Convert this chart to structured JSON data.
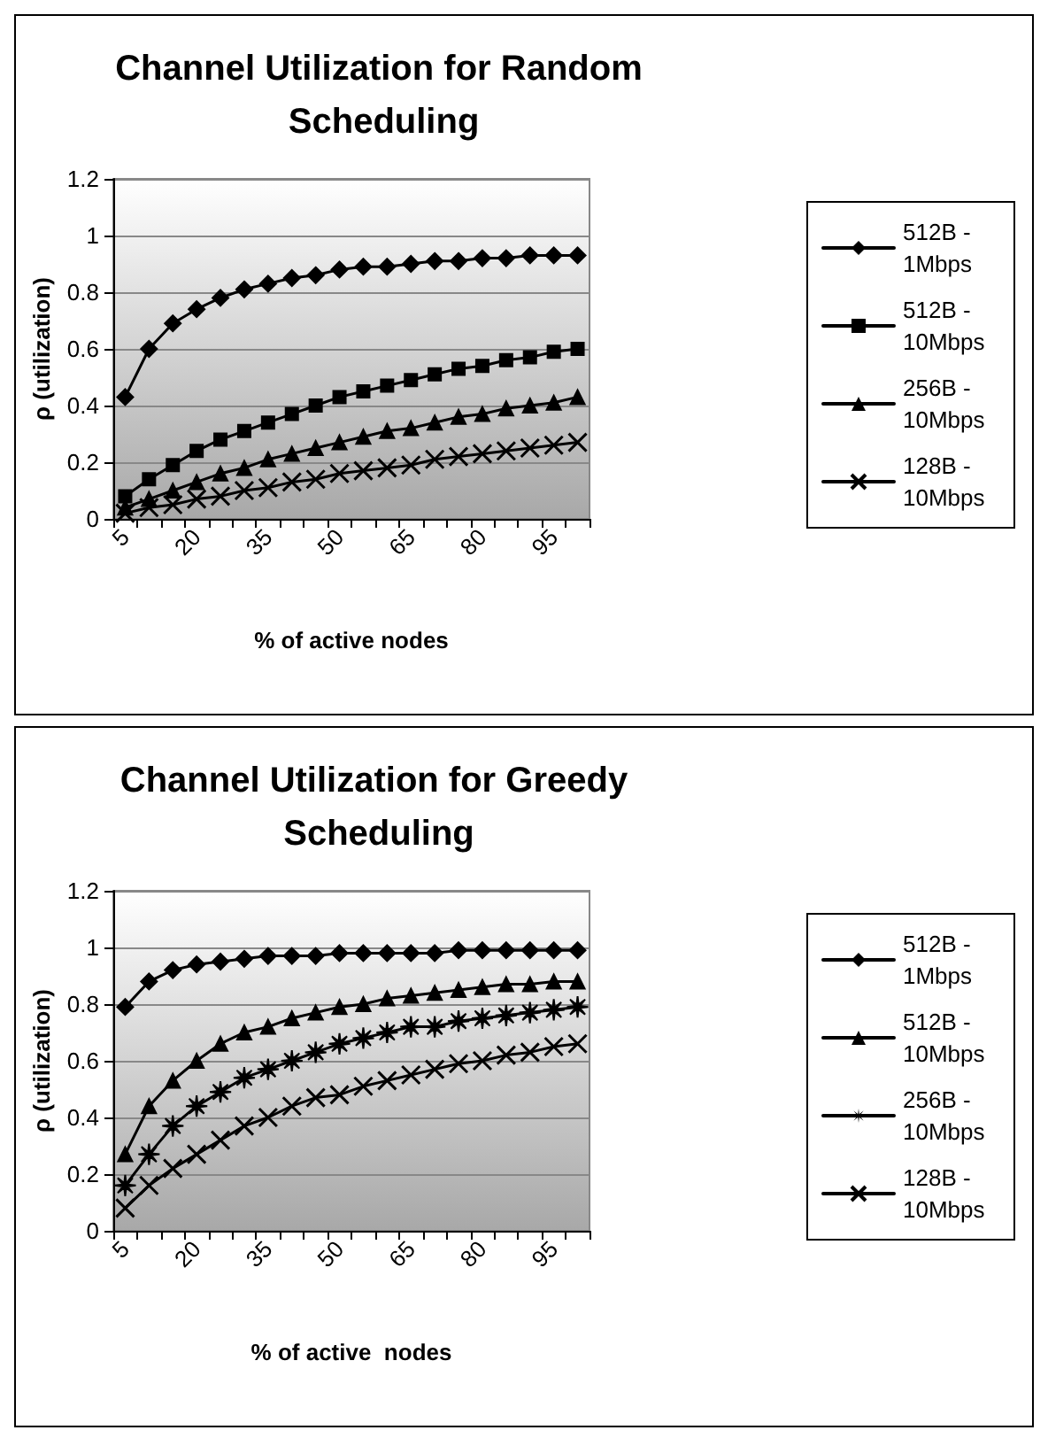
{
  "chart_data": [
    {
      "type": "line",
      "title": "Channel Utilization for Random Scheduling",
      "xlabel": "% of active nodes",
      "ylabel": "ρ (utilization)",
      "categories": [
        "5",
        null,
        null,
        "20",
        null,
        null,
        "35",
        null,
        null,
        "50",
        null,
        null,
        "65",
        null,
        null,
        "80",
        null,
        null,
        "95",
        null
      ],
      "series": [
        {
          "name": "512B - 1Mbps",
          "color": "#000000",
          "marker": "diamond",
          "values": [
            0.43,
            0.6,
            0.69,
            0.74,
            0.78,
            0.81,
            0.83,
            0.85,
            0.86,
            0.88,
            0.89,
            0.89,
            0.9,
            0.91,
            0.91,
            0.92,
            0.92,
            0.93,
            0.93,
            0.93
          ]
        },
        {
          "name": "512B - 10Mbps",
          "color": "#000000",
          "marker": "square",
          "values": [
            0.08,
            0.14,
            0.19,
            0.24,
            0.28,
            0.31,
            0.34,
            0.37,
            0.4,
            0.43,
            0.45,
            0.47,
            0.49,
            0.51,
            0.53,
            0.54,
            0.56,
            0.57,
            0.59,
            0.6
          ]
        },
        {
          "name": "256B - 10Mbps",
          "color": "#000000",
          "marker": "triangle",
          "values": [
            0.04,
            0.07,
            0.1,
            0.13,
            0.16,
            0.18,
            0.21,
            0.23,
            0.25,
            0.27,
            0.29,
            0.31,
            0.32,
            0.34,
            0.36,
            0.37,
            0.39,
            0.4,
            0.41,
            0.43
          ]
        },
        {
          "name": "128B - 10Mbps",
          "color": "#000000",
          "marker": "cross",
          "values": [
            0.02,
            0.04,
            0.05,
            0.07,
            0.08,
            0.1,
            0.11,
            0.13,
            0.14,
            0.16,
            0.17,
            0.18,
            0.19,
            0.21,
            0.22,
            0.23,
            0.24,
            0.25,
            0.26,
            0.27
          ]
        }
      ],
      "ylim": [
        0,
        1.2
      ],
      "yticks": [
        0,
        0.2,
        0.4,
        0.6,
        0.8,
        1,
        1.2
      ],
      "grid": "y",
      "legend": "right",
      "line_style": "solid"
    },
    {
      "type": "line",
      "title": "Channel Utilization for Greedy Scheduling",
      "xlabel": "% of active  nodes",
      "ylabel": "ρ (utilization)",
      "categories": [
        "5",
        null,
        null,
        "20",
        null,
        null,
        "35",
        null,
        null,
        "50",
        null,
        null,
        "65",
        null,
        null,
        "80",
        null,
        null,
        "95",
        null
      ],
      "series": [
        {
          "name": "512B - 1Mbps",
          "color": "#000000",
          "marker": "diamond",
          "values": [
            0.79,
            0.88,
            0.92,
            0.94,
            0.95,
            0.96,
            0.97,
            0.97,
            0.97,
            0.98,
            0.98,
            0.98,
            0.98,
            0.98,
            0.99,
            0.99,
            0.99,
            0.99,
            0.99,
            0.99
          ]
        },
        {
          "name": "512B - 10Mbps",
          "color": "#000000",
          "marker": "triangle",
          "values": [
            0.27,
            0.44,
            0.53,
            0.6,
            0.66,
            0.7,
            0.72,
            0.75,
            0.77,
            0.79,
            0.8,
            0.82,
            0.83,
            0.84,
            0.85,
            0.86,
            0.87,
            0.87,
            0.88,
            0.88
          ]
        },
        {
          "name": "256B - 10Mbps",
          "color": "#000000",
          "marker": "star",
          "values": [
            0.16,
            0.27,
            0.37,
            0.44,
            0.49,
            0.54,
            0.57,
            0.6,
            0.63,
            0.66,
            0.68,
            0.7,
            0.72,
            0.72,
            0.74,
            0.75,
            0.76,
            0.77,
            0.78,
            0.79
          ]
        },
        {
          "name": "128B - 10Mbps",
          "color": "#000000",
          "marker": "cross",
          "values": [
            0.08,
            0.16,
            0.22,
            0.27,
            0.32,
            0.37,
            0.4,
            0.44,
            0.47,
            0.48,
            0.51,
            0.53,
            0.55,
            0.57,
            0.59,
            0.6,
            0.62,
            0.63,
            0.65,
            0.66
          ]
        }
      ],
      "ylim": [
        0,
        1.2
      ],
      "yticks": [
        0,
        0.2,
        0.4,
        0.6,
        0.8,
        1,
        1.2
      ],
      "grid": "y",
      "legend": "right",
      "line_style": "solid"
    }
  ]
}
